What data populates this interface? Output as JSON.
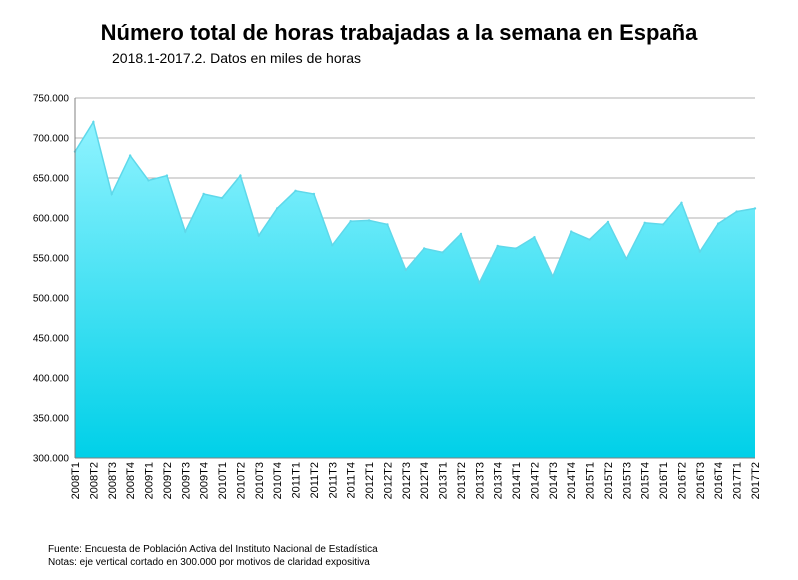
{
  "title": "Número total de horas trabajadas a la semana en España",
  "subtitle": "2018.1-2017.2. Datos en miles de horas",
  "footer": {
    "source": "Fuente: Encuesta de Población Activa del Instituto Nacional de Estadística",
    "note": "Notas: eje vertical cortado en 300.000 por motivos de claridad expositiva"
  },
  "colors": {
    "area_top": "#8ff3ff",
    "area_bottom": "#00d0e8",
    "line": "#5fd8ea",
    "grid": "#b0b0b0"
  },
  "chart_data": {
    "type": "area",
    "title": "Número total de horas trabajadas a la semana en España",
    "subtitle": "2018.1-2017.2. Datos en miles de horas",
    "xlabel": "",
    "ylabel": "",
    "ylim": [
      300000,
      750000
    ],
    "yticks": [
      300000,
      350000,
      400000,
      450000,
      500000,
      550000,
      600000,
      650000,
      700000,
      750000
    ],
    "ytick_labels": [
      "300.000",
      "350.000",
      "400.000",
      "450.000",
      "500.000",
      "550.000",
      "600.000",
      "650.000",
      "700.000",
      "750.000"
    ],
    "grid": true,
    "legend": "none",
    "categories": [
      "2008T1",
      "2008T2",
      "2008T3",
      "2008T4",
      "2009T1",
      "2009T2",
      "2009T3",
      "2009T4",
      "2010T1",
      "2010T2",
      "2010T3",
      "2010T4",
      "2011T1",
      "2011T2",
      "2011T3",
      "2011T4",
      "2012T1",
      "2012T2",
      "2012T3",
      "2012T4",
      "2013T1",
      "2013T2",
      "2013T3",
      "2013T4",
      "2014T1",
      "2014T2",
      "2014T3",
      "2014T4",
      "2015T1",
      "2015T2",
      "2015T3",
      "2015T4",
      "2016T1",
      "2016T2",
      "2016T3",
      "2016T4",
      "2017T1",
      "2017T2"
    ],
    "series": [
      {
        "values": [
          683000,
          720000,
          630000,
          678000,
          647000,
          653000,
          583000,
          630000,
          625000,
          653000,
          578000,
          612000,
          634000,
          630000,
          566000,
          596000,
          597000,
          592000,
          535000,
          562000,
          557000,
          580000,
          519000,
          565000,
          562000,
          576000,
          527000,
          583000,
          573000,
          595000,
          549000,
          594000,
          592000,
          619000,
          558000,
          593000,
          608000,
          612000
        ]
      }
    ]
  }
}
